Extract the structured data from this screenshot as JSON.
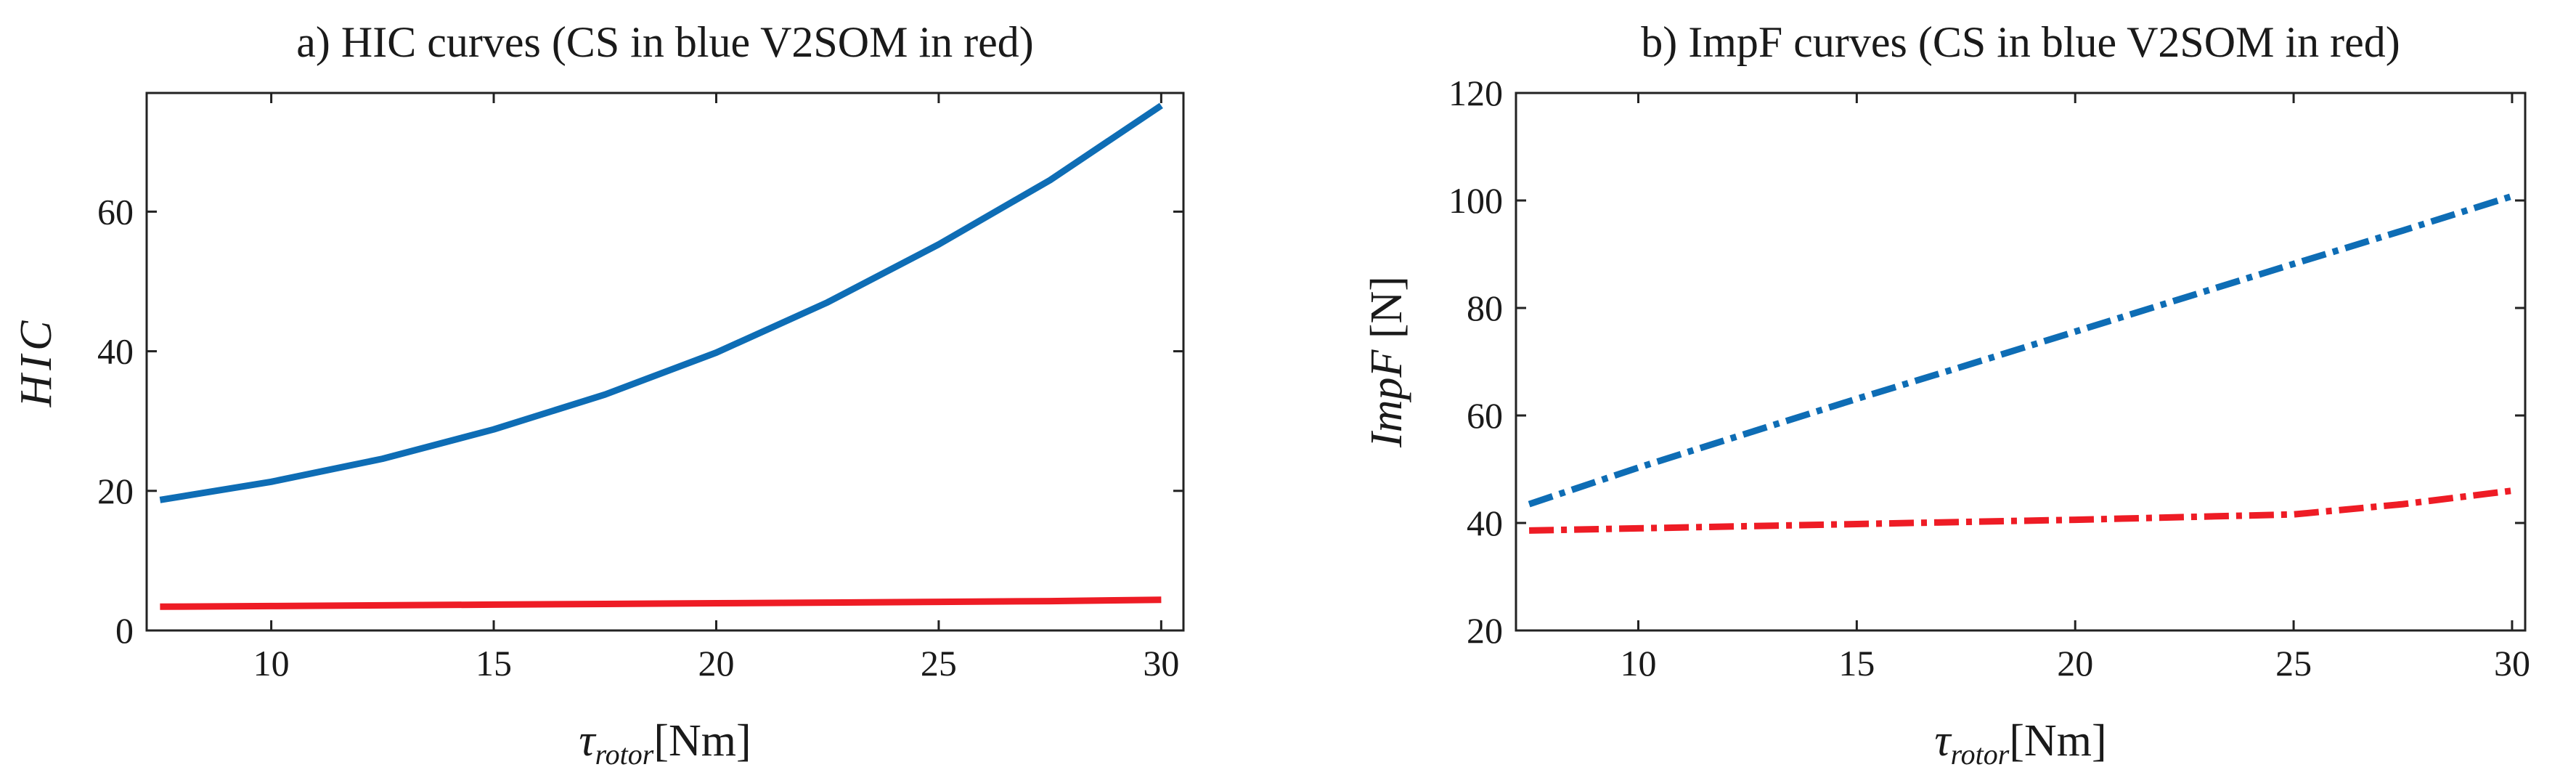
{
  "chart_data": [
    {
      "type": "line",
      "title": "a) HIC curves (CS in blue V2SOM in red)",
      "xlabel": {
        "main": "τ",
        "sub": "rotor",
        "rest": "[Nm]"
      },
      "ylabel": {
        "italic": "HIC",
        "rest": ""
      },
      "xlim": [
        7.2,
        30.5
      ],
      "ylim": [
        0,
        77
      ],
      "xticks": [
        10,
        15,
        20,
        25,
        30
      ],
      "yticks": [
        0,
        20,
        40,
        60
      ],
      "grid": false,
      "series": [
        {
          "color": "#0e6db5",
          "dash": "solid",
          "x": [
            7.5,
            10,
            12.5,
            15,
            17.5,
            20,
            22.5,
            25,
            27.5,
            30
          ],
          "y": [
            18.7,
            21.3,
            24.6,
            28.8,
            33.8,
            39.8,
            47.0,
            55.3,
            64.5,
            75.2
          ]
        },
        {
          "color": "#ee1c25",
          "dash": "solid",
          "x": [
            7.5,
            10,
            12.5,
            15,
            17.5,
            20,
            22.5,
            25,
            27.5,
            30
          ],
          "y": [
            3.4,
            3.5,
            3.6,
            3.7,
            3.8,
            3.9,
            4.0,
            4.1,
            4.2,
            4.4
          ]
        }
      ]
    },
    {
      "type": "line",
      "title": "b) ImpF curves (CS in blue V2SOM in red)",
      "xlabel": {
        "main": "τ",
        "sub": "rotor",
        "rest": "[Nm]"
      },
      "ylabel": {
        "italic": "ImpF",
        "rest": " [N]"
      },
      "xlim": [
        7.2,
        30.3
      ],
      "ylim": [
        20,
        120
      ],
      "xticks": [
        10,
        15,
        20,
        25,
        30
      ],
      "yticks": [
        20,
        40,
        60,
        80,
        100,
        120
      ],
      "grid": false,
      "series": [
        {
          "color": "#0e6db5",
          "dash": "dashdot",
          "x": [
            7.5,
            10,
            12.5,
            15,
            17.5,
            20,
            22.5,
            25,
            27.5,
            30
          ],
          "y": [
            43.5,
            50.3,
            56.7,
            63.1,
            69.3,
            75.6,
            81.9,
            88.2,
            94.4,
            100.8
          ]
        },
        {
          "color": "#ee1c25",
          "dash": "dashdot",
          "x": [
            7.5,
            10,
            12.5,
            15,
            17.5,
            20,
            22.5,
            25,
            27.5,
            30
          ],
          "y": [
            38.6,
            39.0,
            39.4,
            39.8,
            40.2,
            40.6,
            41.1,
            41.6,
            43.5,
            46.0
          ]
        }
      ]
    }
  ]
}
